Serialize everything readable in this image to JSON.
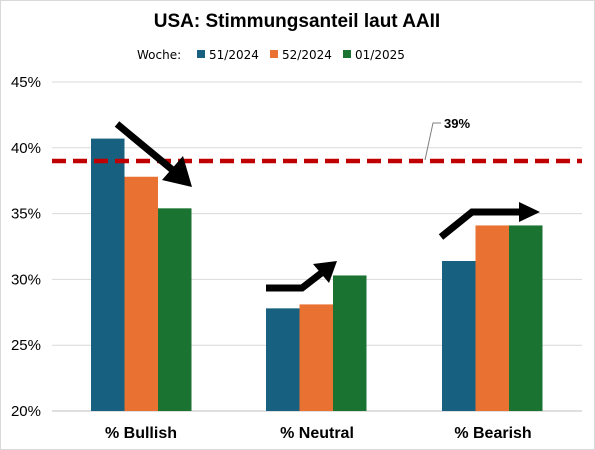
{
  "chart_data": {
    "type": "bar",
    "title": "USA: Stimmungsanteil laut AAII",
    "legend_title": "Woche:",
    "legend_position": "top",
    "categories": [
      "% Bullish",
      "% Neutral",
      "% Bearish"
    ],
    "series": [
      {
        "name": "51/2024",
        "color": "#17607f",
        "values": [
          40.7,
          27.8,
          31.4
        ]
      },
      {
        "name": "52/2024",
        "color": "#e97132",
        "values": [
          37.8,
          28.1,
          34.1
        ]
      },
      {
        "name": "01/2025",
        "color": "#1b7331",
        "values": [
          35.4,
          30.3,
          34.1
        ]
      }
    ],
    "ylim": [
      20,
      45
    ],
    "yticks": [
      "20%",
      "25%",
      "30%",
      "35%",
      "40%",
      "45%"
    ],
    "ytick_values": [
      20,
      25,
      30,
      35,
      40,
      45
    ],
    "grid": true,
    "reference_line": {
      "value": 39,
      "label": "39%",
      "color": "#c00000",
      "style": "dashed"
    },
    "annotations": [
      {
        "category": "% Bullish",
        "type": "arrow",
        "direction": "down"
      },
      {
        "category": "% Neutral",
        "type": "arrow",
        "direction": "up"
      },
      {
        "category": "% Bearish",
        "type": "arrow",
        "direction": "up"
      }
    ]
  }
}
